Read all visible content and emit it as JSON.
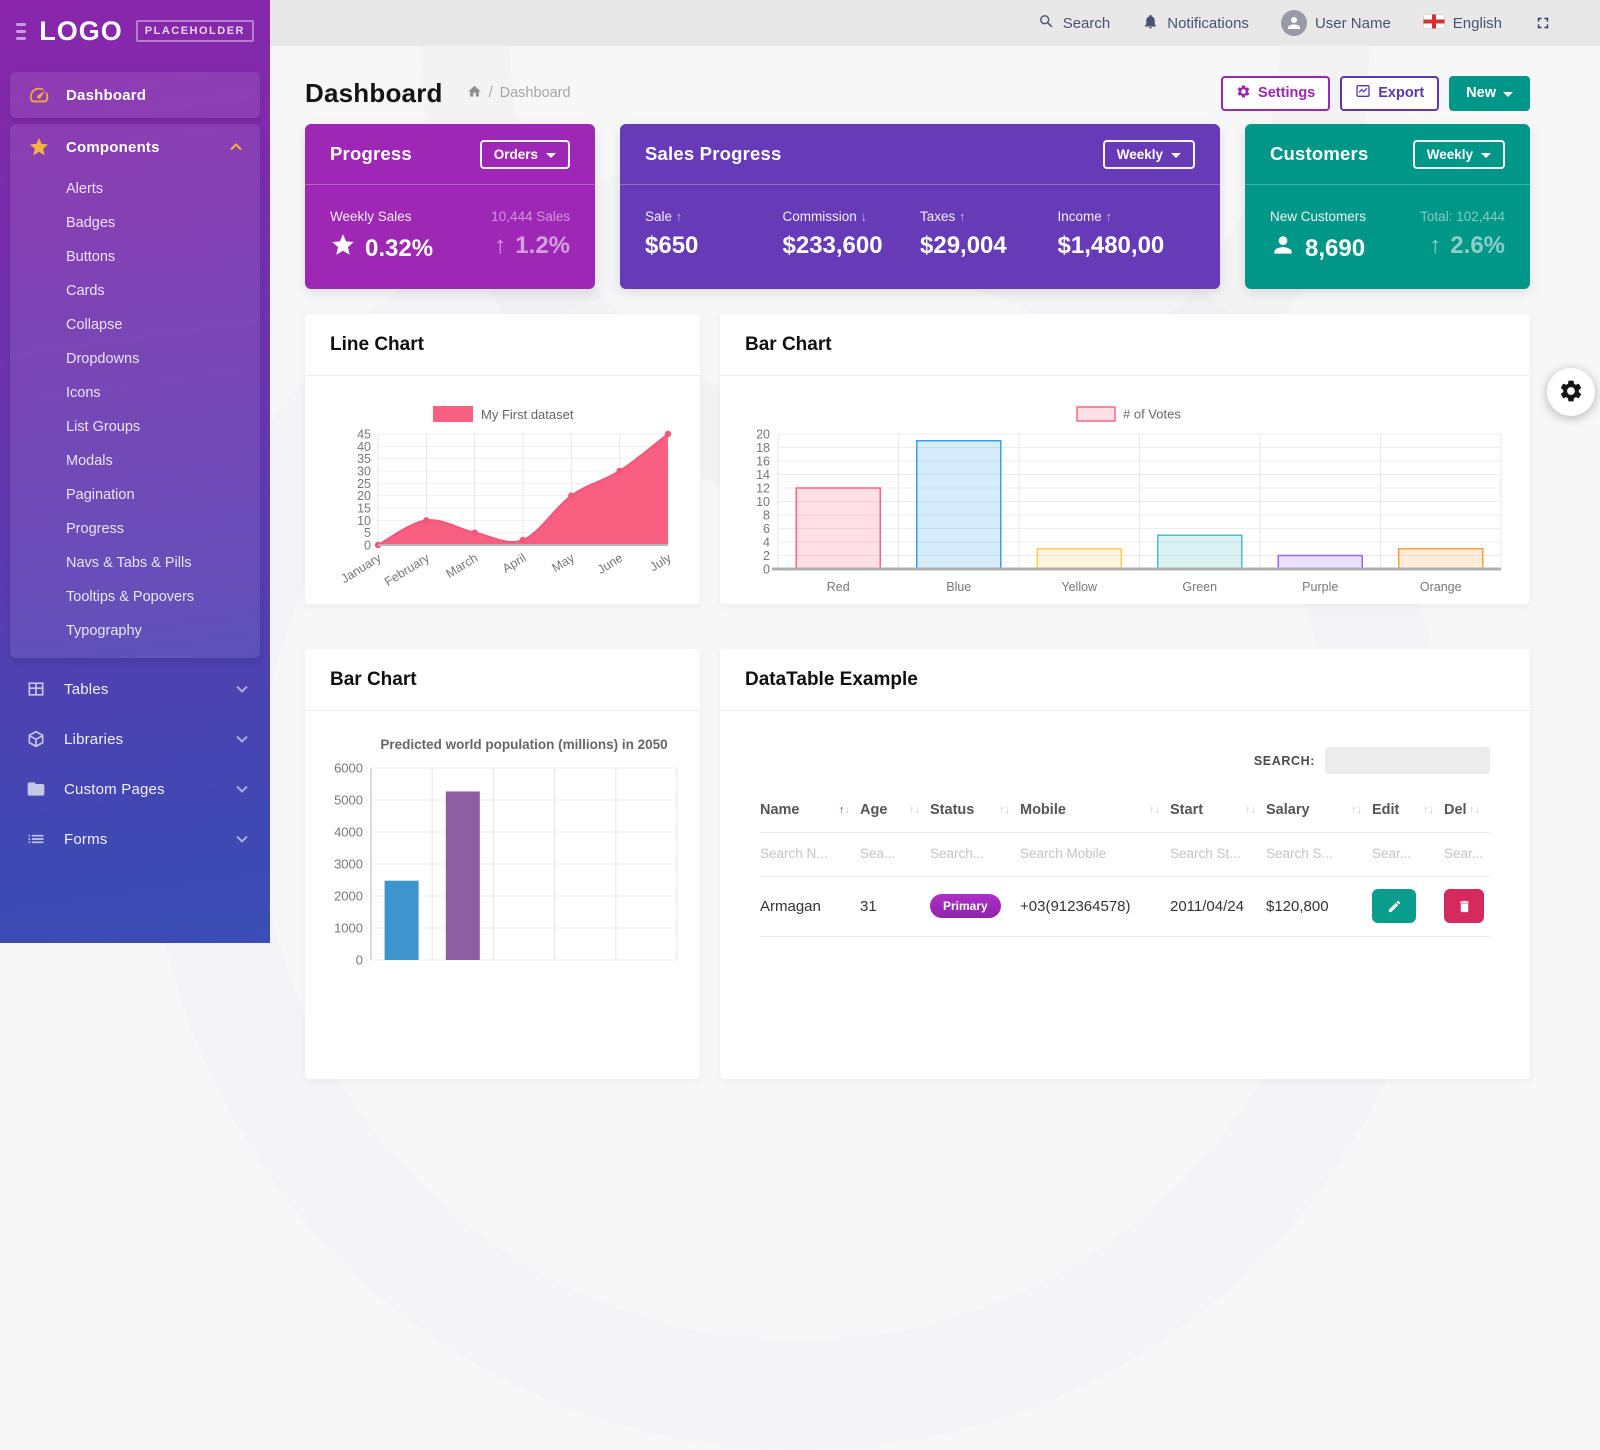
{
  "colors": {
    "accent_purple": "#9c27b0",
    "accent_deep_purple": "#673ab7",
    "accent_teal": "#009688",
    "danger": "#d62a5f",
    "line_pink": "#f85f80"
  },
  "brand": {
    "logo_text": "LOGO",
    "logo_badge": "PLACEHOLDER"
  },
  "topbar": {
    "search_label": "Search",
    "notifications_label": "Notifications",
    "user_label": "User Name",
    "language_label": "English"
  },
  "sidebar": {
    "items": [
      {
        "label": "Dashboard",
        "icon": "gauge",
        "block": true
      },
      {
        "label": "Components",
        "icon": "star",
        "block": true,
        "expanded": true,
        "children": [
          "Alerts",
          "Badges",
          "Buttons",
          "Cards",
          "Collapse",
          "Dropdowns",
          "Icons",
          "List Groups",
          "Modals",
          "Pagination",
          "Progress",
          "Navs & Tabs & Pills",
          "Tooltips & Popovers",
          "Typography"
        ]
      },
      {
        "label": "Tables",
        "icon": "table",
        "chevron": "down"
      },
      {
        "label": "Libraries",
        "icon": "cube",
        "chevron": "down"
      },
      {
        "label": "Custom Pages",
        "icon": "folder",
        "chevron": "down"
      },
      {
        "label": "Forms",
        "icon": "list",
        "chevron": "down"
      }
    ]
  },
  "page_header": {
    "title": "Dashboard",
    "breadcrumb_current": "Dashboard",
    "settings_label": "Settings",
    "export_label": "Export",
    "new_label": "New"
  },
  "stat_cards": {
    "progress": {
      "title": "Progress",
      "dropdown": "Orders",
      "metric_label": "Weekly Sales",
      "metric_value": "0.32%",
      "secondary_label": "10,444 Sales",
      "secondary_value": "1.2%"
    },
    "sales": {
      "title": "Sales Progress",
      "dropdown": "Weekly",
      "metrics": [
        {
          "label": "Sale",
          "direction": "up",
          "value": "$650"
        },
        {
          "label": "Commission",
          "direction": "down",
          "value": "$233,600"
        },
        {
          "label": "Taxes",
          "direction": "up",
          "value": "$29,004"
        },
        {
          "label": "Income",
          "direction": "up",
          "value": "$1,480,00"
        }
      ]
    },
    "customers": {
      "title": "Customers",
      "dropdown": "Weekly",
      "metric_label": "New Customers",
      "metric_value": "8,690",
      "secondary_label": "Total: 102,444",
      "secondary_value": "2.6%"
    }
  },
  "panels": {
    "line_chart": "Line Chart",
    "bar_chart": "Bar Chart",
    "bar_chart2": "Bar Chart",
    "datatable": "DataTable Example"
  },
  "chart_data": [
    {
      "id": "chart-line",
      "type": "line",
      "legend": "My First dataset",
      "legend_position": "top",
      "grid": true,
      "x": [
        "January",
        "February",
        "March",
        "April",
        "May",
        "June",
        "July"
      ],
      "series": [
        {
          "name": "My First dataset",
          "values": [
            0,
            10,
            5,
            2,
            20,
            30,
            45
          ]
        }
      ],
      "ylim": [
        0,
        45
      ],
      "ytick_step": 5,
      "line_color": "#f7547a",
      "fill_color": "#f85f80"
    },
    {
      "id": "chart-votes",
      "type": "bar",
      "legend": "# of Votes",
      "legend_position": "top",
      "grid": true,
      "categories": [
        "Red",
        "Blue",
        "Yellow",
        "Green",
        "Purple",
        "Orange"
      ],
      "values": [
        12,
        19,
        3,
        5,
        2,
        3
      ],
      "ylim": [
        0,
        20
      ],
      "ytick_step": 2,
      "bar_fills": [
        "rgba(255,99,132,0.2)",
        "rgba(54,162,235,0.2)",
        "rgba(255,206,86,0.2)",
        "rgba(75,192,192,0.2)",
        "rgba(153,102,255,0.2)",
        "rgba(255,159,64,0.2)"
      ],
      "bar_borders": [
        "rgba(255,99,132,1)",
        "rgba(54,162,235,1)",
        "rgba(255,206,86,1)",
        "rgba(75,192,192,1)",
        "rgba(153,102,255,1)",
        "rgba(255,159,64,1)"
      ]
    },
    {
      "id": "chart-pop",
      "type": "bar",
      "title": "Predicted world population (millions) in 2050",
      "grid": true,
      "categories": [
        "",
        "",
        "",
        "",
        ""
      ],
      "values": [
        2478,
        5267,
        null,
        null,
        null
      ],
      "ylim": [
        0,
        6000
      ],
      "ytick_step": 1000,
      "bar_fills": [
        "#3e95cd",
        "#8e5ea2",
        "#3cba9f",
        "#e8c3b9",
        "#c45850"
      ]
    }
  ],
  "datatable": {
    "search_label": "SEARCH:",
    "columns": [
      "Name",
      "Age",
      "Status",
      "Mobile",
      "Start",
      "Salary",
      "Edit",
      "Del"
    ],
    "sorted_column": "Name",
    "filter_placeholders": [
      "Search N...",
      "Sea...",
      "Search...",
      "Search Mobile",
      "Search St...",
      "Search S...",
      "Sear...",
      "Sear..."
    ],
    "rows": [
      {
        "name": "Armagan",
        "age": "31",
        "status": "Primary",
        "mobile": "+03(912364578)",
        "start": "2011/04/24",
        "salary": "$120,800"
      }
    ]
  }
}
